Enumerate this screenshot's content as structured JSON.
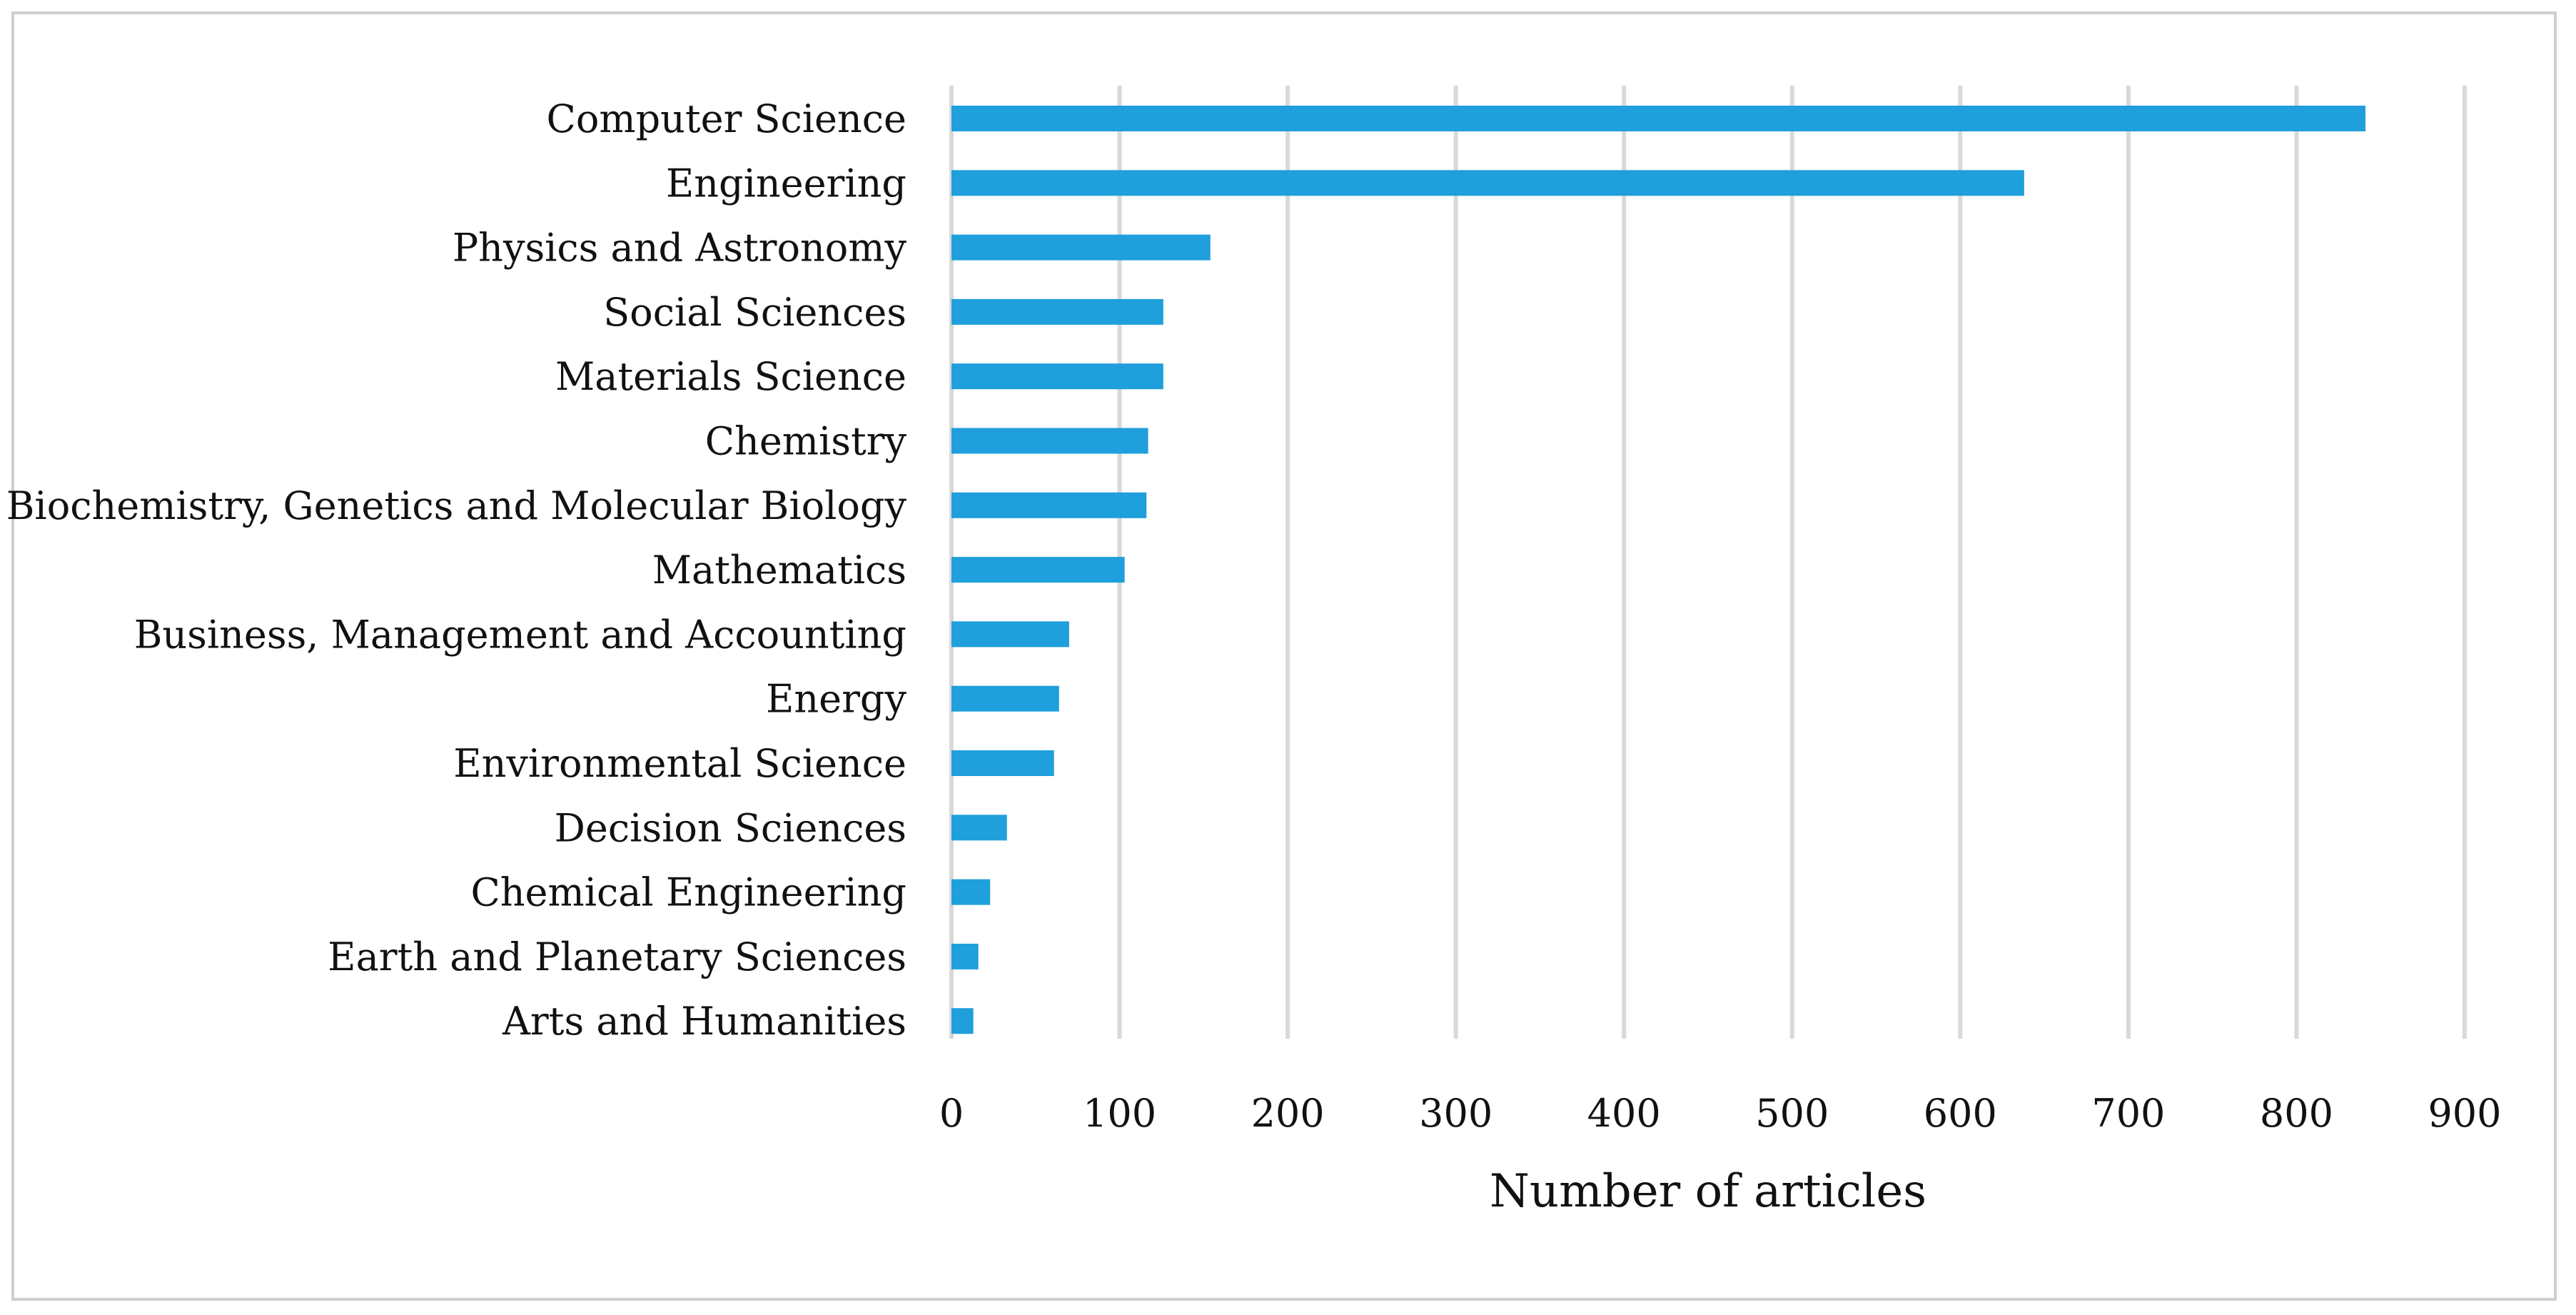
{
  "chart_data": {
    "type": "bar",
    "orientation": "horizontal",
    "title": "",
    "xlabel": "Number of articles",
    "ylabel": "",
    "xlim": [
      0,
      900
    ],
    "xticks": [
      0,
      100,
      200,
      300,
      400,
      500,
      600,
      700,
      800,
      900
    ],
    "grid": true,
    "legend": "none",
    "categories": [
      "Computer Science",
      "Engineering",
      "Physics and Astronomy",
      "Social Sciences",
      "Materials Science",
      "Chemistry",
      "Biochemistry, Genetics and Molecular Biology",
      "Mathematics",
      "Business, Management and Accounting",
      "Energy",
      "Environmental Science",
      "Decision Sciences",
      "Chemical Engineering",
      "Earth and Planetary Sciences",
      "Arts and Humanities"
    ],
    "values": [
      841,
      638,
      154,
      126,
      126,
      117,
      116,
      103,
      70,
      64,
      61,
      33,
      23,
      16,
      13
    ],
    "colors": {
      "bar": "#1f9fdc",
      "grid": "#d9d9d9",
      "frame": "#cfcfcf"
    }
  }
}
